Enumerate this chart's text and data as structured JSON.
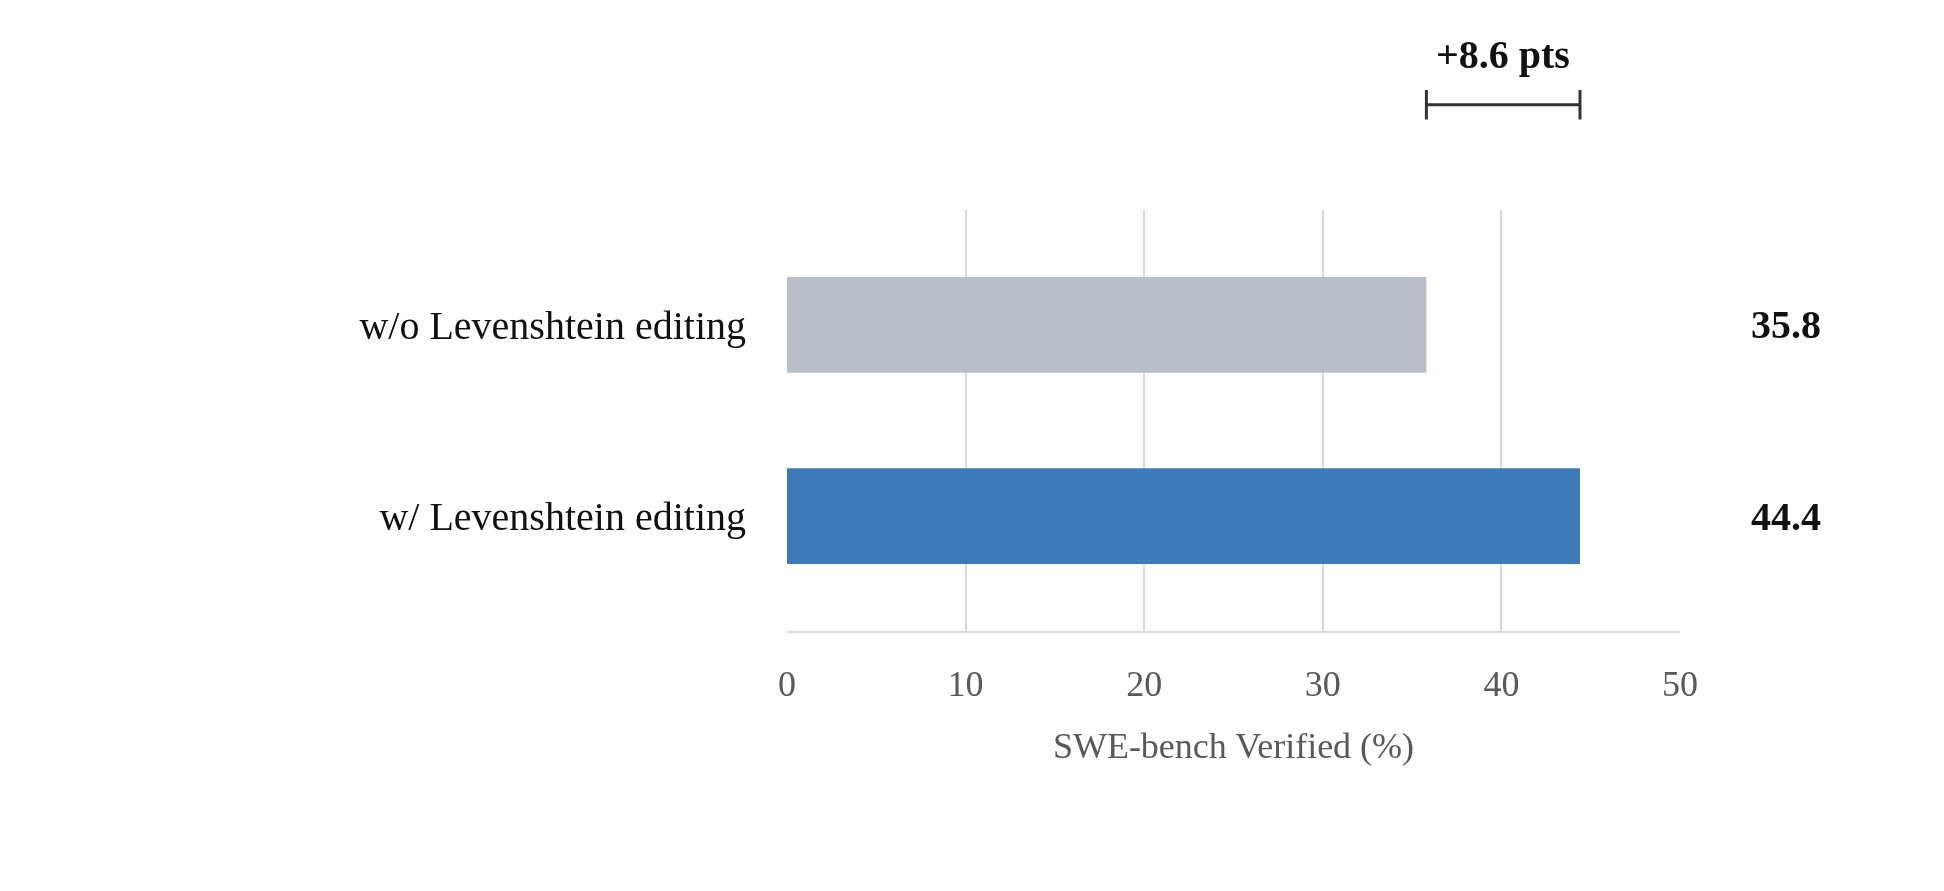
{
  "chart_data": {
    "type": "bar",
    "orientation": "horizontal",
    "categories": [
      "w/o Levenshtein editing",
      "w/ Levenshtein editing"
    ],
    "values": [
      35.8,
      44.4
    ],
    "colors": [
      "#b9bec8",
      "#3e7ab7"
    ],
    "xlabel": "SWE-bench Verified (%)",
    "xlim": [
      0,
      50
    ],
    "xticks": [
      0,
      10,
      20,
      30,
      40,
      50
    ],
    "grid": "x",
    "data_labels": true,
    "annotations": [
      "+8.6 pts"
    ]
  }
}
